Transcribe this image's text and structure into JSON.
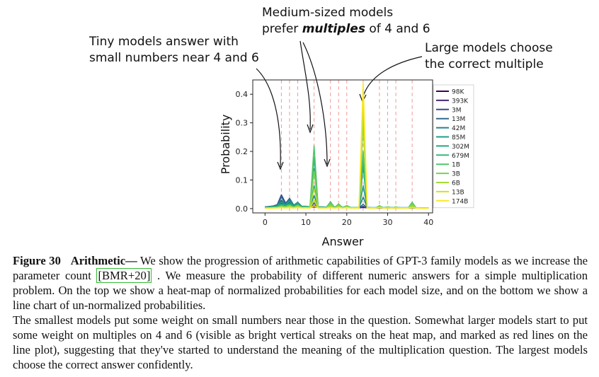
{
  "annotations": {
    "tiny": [
      "Tiny models answer with",
      "small numbers near 4 and 6"
    ],
    "medium_line1": "Medium-sized models",
    "medium_line2_pre": "prefer ",
    "medium_line2_em": "multiples",
    "medium_line2_post": " of 4 and 6",
    "large": [
      "Large models choose",
      "the correct multiple"
    ]
  },
  "chart_data": {
    "type": "line",
    "xlabel": "Answer",
    "ylabel": "Probability",
    "xlim": [
      -3,
      41
    ],
    "ylim": [
      -0.015,
      0.45
    ],
    "xticks": [
      0,
      10,
      20,
      30,
      40
    ],
    "yticks": [
      0.0,
      0.1,
      0.2,
      0.3,
      0.4
    ],
    "ytick_labels": [
      "0.0",
      "0.1",
      "0.2",
      "0.3",
      "0.4"
    ],
    "reference_lines_x": [
      4,
      6,
      8,
      12,
      16,
      18,
      20,
      24,
      28,
      30,
      32,
      36
    ],
    "legend_position": "right",
    "x": [
      0,
      1,
      2,
      3,
      4,
      5,
      6,
      7,
      8,
      9,
      10,
      11,
      12,
      13,
      14,
      15,
      16,
      17,
      18,
      19,
      20,
      21,
      22,
      23,
      24,
      25,
      26,
      27,
      28,
      29,
      30,
      31,
      32,
      33,
      34,
      35,
      36,
      37,
      38,
      39,
      40
    ],
    "series": [
      {
        "name": "98K",
        "color": "#440154",
        "values": [
          0.005,
          0.006,
          0.007,
          0.01,
          0.02,
          0.012,
          0.01,
          0.008,
          0.007,
          0.006,
          0.005,
          0.004,
          0.006,
          0.004,
          0.004,
          0.003,
          0.004,
          0.003,
          0.003,
          0.003,
          0.003,
          0.003,
          0.003,
          0.003,
          0.004,
          0.003,
          0.002,
          0.002,
          0.002,
          0.002,
          0.002,
          0.002,
          0.002,
          0.002,
          0.002,
          0.002,
          0.002,
          0.002,
          0.002,
          0.002,
          0.002
        ]
      },
      {
        "name": "393K",
        "color": "#482677",
        "values": [
          0.006,
          0.007,
          0.008,
          0.012,
          0.028,
          0.015,
          0.02,
          0.01,
          0.008,
          0.006,
          0.005,
          0.004,
          0.008,
          0.004,
          0.004,
          0.003,
          0.004,
          0.003,
          0.003,
          0.003,
          0.003,
          0.003,
          0.003,
          0.003,
          0.006,
          0.003,
          0.002,
          0.002,
          0.002,
          0.002,
          0.002,
          0.002,
          0.002,
          0.002,
          0.002,
          0.002,
          0.002,
          0.002,
          0.002,
          0.002,
          0.002
        ]
      },
      {
        "name": "3M",
        "color": "#3e4989",
        "values": [
          0.006,
          0.007,
          0.009,
          0.014,
          0.048,
          0.02,
          0.03,
          0.012,
          0.01,
          0.007,
          0.006,
          0.005,
          0.012,
          0.005,
          0.004,
          0.004,
          0.006,
          0.004,
          0.004,
          0.003,
          0.003,
          0.003,
          0.003,
          0.003,
          0.008,
          0.003,
          0.002,
          0.002,
          0.002,
          0.002,
          0.002,
          0.002,
          0.002,
          0.002,
          0.002,
          0.002,
          0.002,
          0.002,
          0.002,
          0.002,
          0.002
        ]
      },
      {
        "name": "13M",
        "color": "#31688e",
        "values": [
          0.006,
          0.007,
          0.009,
          0.013,
          0.04,
          0.018,
          0.036,
          0.013,
          0.016,
          0.008,
          0.007,
          0.005,
          0.02,
          0.005,
          0.005,
          0.004,
          0.01,
          0.004,
          0.006,
          0.003,
          0.004,
          0.003,
          0.003,
          0.003,
          0.015,
          0.003,
          0.002,
          0.002,
          0.003,
          0.002,
          0.002,
          0.002,
          0.002,
          0.002,
          0.002,
          0.002,
          0.002,
          0.002,
          0.002,
          0.002,
          0.002
        ]
      },
      {
        "name": "42M",
        "color": "#26828e",
        "values": [
          0.005,
          0.006,
          0.008,
          0.012,
          0.03,
          0.015,
          0.032,
          0.012,
          0.022,
          0.008,
          0.008,
          0.006,
          0.045,
          0.006,
          0.006,
          0.005,
          0.018,
          0.005,
          0.01,
          0.004,
          0.006,
          0.004,
          0.004,
          0.004,
          0.04,
          0.004,
          0.003,
          0.003,
          0.005,
          0.003,
          0.004,
          0.003,
          0.003,
          0.003,
          0.003,
          0.003,
          0.004,
          0.003,
          0.002,
          0.002,
          0.002
        ]
      },
      {
        "name": "85M",
        "color": "#1f9e89",
        "values": [
          0.005,
          0.006,
          0.007,
          0.01,
          0.022,
          0.012,
          0.025,
          0.01,
          0.02,
          0.007,
          0.008,
          0.006,
          0.08,
          0.006,
          0.006,
          0.005,
          0.02,
          0.005,
          0.012,
          0.004,
          0.008,
          0.004,
          0.004,
          0.004,
          0.08,
          0.004,
          0.003,
          0.003,
          0.006,
          0.003,
          0.005,
          0.003,
          0.004,
          0.003,
          0.003,
          0.003,
          0.006,
          0.003,
          0.002,
          0.002,
          0.002
        ]
      },
      {
        "name": "302M",
        "color": "#22a884",
        "values": [
          0.004,
          0.005,
          0.006,
          0.008,
          0.016,
          0.01,
          0.018,
          0.008,
          0.016,
          0.006,
          0.007,
          0.005,
          0.14,
          0.005,
          0.005,
          0.004,
          0.022,
          0.004,
          0.014,
          0.004,
          0.01,
          0.004,
          0.004,
          0.004,
          0.15,
          0.004,
          0.003,
          0.003,
          0.008,
          0.003,
          0.006,
          0.003,
          0.005,
          0.003,
          0.003,
          0.003,
          0.01,
          0.003,
          0.002,
          0.002,
          0.002
        ]
      },
      {
        "name": "679M",
        "color": "#35b779",
        "values": [
          0.003,
          0.004,
          0.005,
          0.006,
          0.012,
          0.008,
          0.014,
          0.006,
          0.014,
          0.005,
          0.006,
          0.004,
          0.18,
          0.004,
          0.004,
          0.003,
          0.024,
          0.003,
          0.016,
          0.003,
          0.01,
          0.003,
          0.003,
          0.003,
          0.18,
          0.003,
          0.002,
          0.002,
          0.01,
          0.002,
          0.006,
          0.002,
          0.006,
          0.002,
          0.002,
          0.002,
          0.014,
          0.002,
          0.002,
          0.002,
          0.002
        ]
      },
      {
        "name": "1B",
        "color": "#54c568",
        "values": [
          0.003,
          0.003,
          0.004,
          0.005,
          0.01,
          0.007,
          0.012,
          0.005,
          0.012,
          0.004,
          0.005,
          0.004,
          0.22,
          0.004,
          0.004,
          0.003,
          0.022,
          0.003,
          0.016,
          0.003,
          0.01,
          0.003,
          0.003,
          0.003,
          0.2,
          0.003,
          0.002,
          0.002,
          0.01,
          0.002,
          0.006,
          0.002,
          0.006,
          0.002,
          0.002,
          0.002,
          0.022,
          0.002,
          0.002,
          0.002,
          0.002
        ]
      },
      {
        "name": "3B",
        "color": "#7ad151",
        "values": [
          0.002,
          0.003,
          0.003,
          0.004,
          0.008,
          0.005,
          0.01,
          0.004,
          0.01,
          0.004,
          0.004,
          0.003,
          0.13,
          0.003,
          0.003,
          0.003,
          0.016,
          0.003,
          0.012,
          0.003,
          0.008,
          0.003,
          0.003,
          0.003,
          0.3,
          0.003,
          0.002,
          0.002,
          0.008,
          0.002,
          0.005,
          0.002,
          0.005,
          0.002,
          0.002,
          0.002,
          0.016,
          0.002,
          0.002,
          0.002,
          0.002
        ]
      },
      {
        "name": "6B",
        "color": "#a5db36",
        "values": [
          0.002,
          0.002,
          0.003,
          0.003,
          0.006,
          0.004,
          0.008,
          0.003,
          0.008,
          0.003,
          0.003,
          0.003,
          0.07,
          0.003,
          0.003,
          0.002,
          0.01,
          0.002,
          0.008,
          0.002,
          0.006,
          0.002,
          0.002,
          0.002,
          0.33,
          0.002,
          0.002,
          0.002,
          0.006,
          0.002,
          0.004,
          0.002,
          0.004,
          0.002,
          0.002,
          0.002,
          0.01,
          0.002,
          0.002,
          0.002,
          0.002
        ]
      },
      {
        "name": "13B",
        "color": "#d2e21b",
        "values": [
          0.002,
          0.002,
          0.002,
          0.003,
          0.004,
          0.003,
          0.005,
          0.003,
          0.005,
          0.002,
          0.003,
          0.002,
          0.03,
          0.002,
          0.002,
          0.002,
          0.005,
          0.002,
          0.005,
          0.002,
          0.004,
          0.002,
          0.002,
          0.002,
          0.4,
          0.002,
          0.002,
          0.002,
          0.004,
          0.002,
          0.003,
          0.002,
          0.003,
          0.002,
          0.002,
          0.002,
          0.005,
          0.002,
          0.002,
          0.002,
          0.002
        ]
      },
      {
        "name": "174B",
        "color": "#fde725",
        "values": [
          0.001,
          0.001,
          0.002,
          0.002,
          0.003,
          0.002,
          0.003,
          0.002,
          0.003,
          0.002,
          0.002,
          0.002,
          0.01,
          0.002,
          0.002,
          0.002,
          0.003,
          0.002,
          0.003,
          0.002,
          0.003,
          0.002,
          0.002,
          0.002,
          0.44,
          0.002,
          0.002,
          0.002,
          0.003,
          0.002,
          0.002,
          0.002,
          0.002,
          0.002,
          0.002,
          0.002,
          0.003,
          0.002,
          0.001,
          0.001,
          0.001
        ]
      }
    ]
  },
  "caption": {
    "label": "Figure 30",
    "title": "Arithmetic—",
    "text1": " We show the progression of arithmetic capabilities of GPT-3 family models as we increase the parameter count ",
    "cite": "[BMR+20]",
    "text2": " . We measure the probability of different numeric answers for a simple multiplication problem. On the top we show a heat-map of normalized probabilities for each model size, and on the bottom we show a line chart of un-normalized probabilities.",
    "paragraph2": "The smallest models put some weight on small numbers near those in the question. Somewhat larger models start to put some weight on multiples on 4 and 6 (visible as bright vertical streaks on the heat map, and marked as red lines on the line plot), suggesting that they've started to understand the meaning of the multiplication question. The largest models choose the correct answer confidently."
  }
}
